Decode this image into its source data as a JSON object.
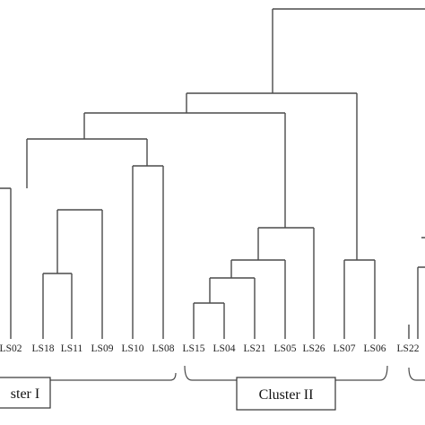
{
  "leaves": [
    "LS02",
    "LS18",
    "LS11",
    "LS09",
    "LS10",
    "LS08",
    "LS15",
    "LS04",
    "LS21",
    "LS05",
    "LS26",
    "LS07",
    "LS06",
    "LS22"
  ],
  "clusters": [
    {
      "label": "ster I"
    },
    {
      "label": "Cluster II"
    }
  ],
  "colors": {
    "line": "#4a4a4a",
    "text": "#222222",
    "background": "#ffffff"
  }
}
